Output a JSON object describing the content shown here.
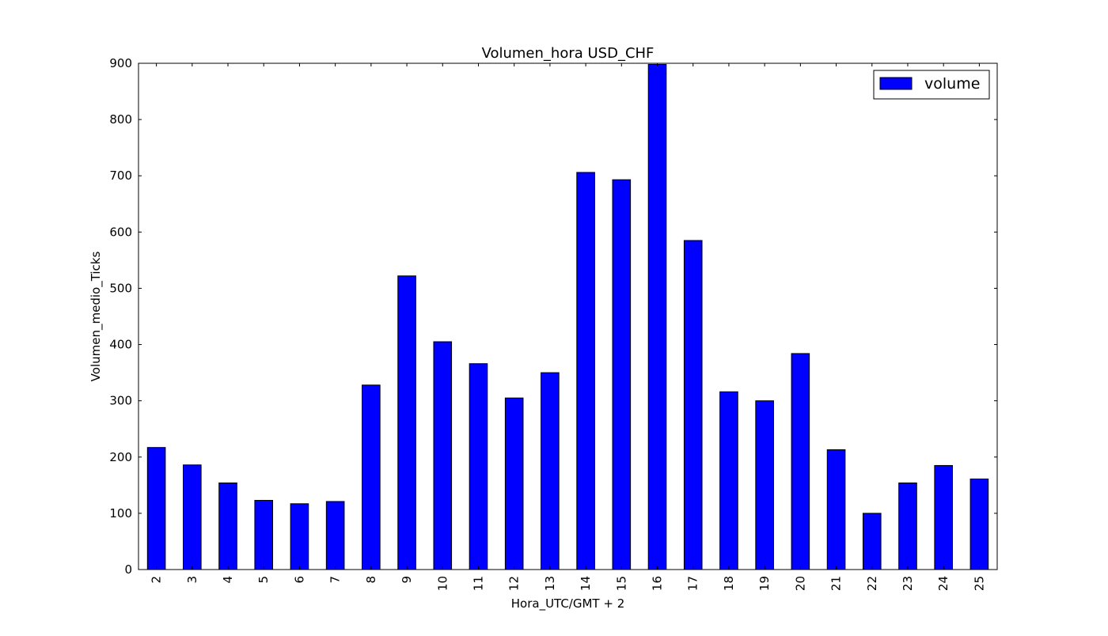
{
  "chart_data": {
    "type": "bar",
    "title": "Volumen_hora USD_CHF",
    "xlabel": "Hora_UTC/GMT + 2",
    "ylabel": "Volumen_medio_Ticks",
    "categories": [
      "2",
      "3",
      "4",
      "5",
      "6",
      "7",
      "8",
      "9",
      "10",
      "11",
      "12",
      "13",
      "14",
      "15",
      "16",
      "17",
      "18",
      "19",
      "20",
      "21",
      "22",
      "23",
      "24",
      "25"
    ],
    "series": [
      {
        "name": "volume",
        "color": "#0000ff",
        "values": [
          217,
          186,
          154,
          123,
          117,
          121,
          328,
          522,
          405,
          366,
          305,
          350,
          706,
          693,
          898,
          585,
          316,
          300,
          384,
          213,
          100,
          154,
          185,
          161
        ]
      }
    ],
    "ylim": [
      0,
      900
    ],
    "yticks": [
      0,
      100,
      200,
      300,
      400,
      500,
      600,
      700,
      800,
      900
    ],
    "grid": false,
    "legend_position": "top-right"
  }
}
